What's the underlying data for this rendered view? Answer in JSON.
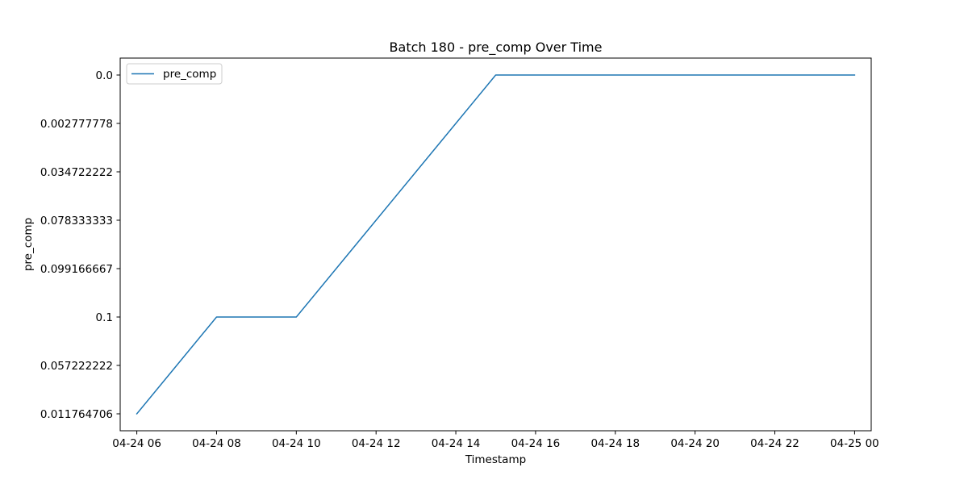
{
  "chart_data": {
    "type": "line",
    "title": "Batch 180 - pre_comp Over Time",
    "xlabel": "Timestamp",
    "ylabel": "pre_comp",
    "y_axis_kind": "categorical",
    "y_categories_bottom_to_top": [
      "0.011764706",
      "0.057222222",
      "0.1",
      "0.099166667",
      "0.078333333",
      "0.034722222",
      "0.002777778",
      "0.0"
    ],
    "x_tick_labels": [
      "04-24 06",
      "04-24 08",
      "04-24 10",
      "04-24 12",
      "04-24 14",
      "04-24 16",
      "04-24 18",
      "04-24 20",
      "04-24 22",
      "04-25 00"
    ],
    "xlim": [
      "04-24 05:35",
      "04-25 00:25"
    ],
    "series": [
      {
        "name": "pre_comp",
        "color": "#1f77b4",
        "points": [
          {
            "x": "04-24 06",
            "y": "0.011764706"
          },
          {
            "x": "04-24 07",
            "y": "0.057222222"
          },
          {
            "x": "04-24 08",
            "y": "0.1"
          },
          {
            "x": "04-24 09",
            "y": "0.1"
          },
          {
            "x": "04-24 10",
            "y": "0.1"
          },
          {
            "x": "04-24 11",
            "y": "0.099166667"
          },
          {
            "x": "04-24 12",
            "y": "0.078333333"
          },
          {
            "x": "04-24 13",
            "y": "0.034722222"
          },
          {
            "x": "04-24 14",
            "y": "0.002777778"
          },
          {
            "x": "04-24 15",
            "y": "0.0"
          },
          {
            "x": "04-24 16",
            "y": "0.0"
          },
          {
            "x": "04-24 17",
            "y": "0.0"
          },
          {
            "x": "04-24 18",
            "y": "0.0"
          },
          {
            "x": "04-24 19",
            "y": "0.0"
          },
          {
            "x": "04-24 20",
            "y": "0.0"
          },
          {
            "x": "04-24 21",
            "y": "0.0"
          },
          {
            "x": "04-24 22",
            "y": "0.0"
          },
          {
            "x": "04-24 23",
            "y": "0.0"
          },
          {
            "x": "04-25 00",
            "y": "0.0"
          }
        ]
      }
    ],
    "legend": {
      "position": "upper-left",
      "entries": [
        "pre_comp"
      ]
    },
    "grid": false
  }
}
